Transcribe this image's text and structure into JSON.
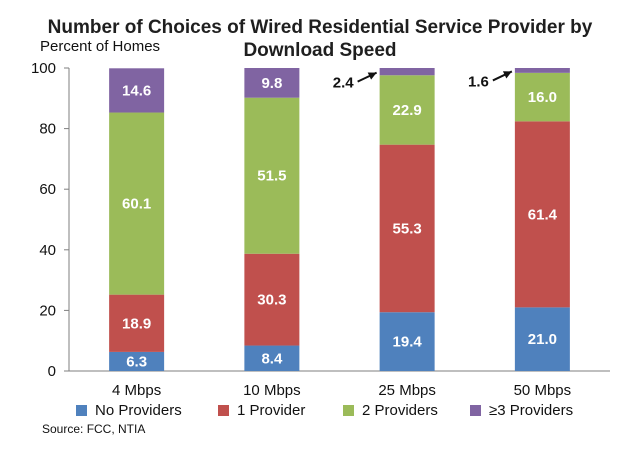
{
  "chart_data": {
    "type": "bar",
    "stacked": true,
    "title": "Number of Choices of Wired Residential Service Provider by Download Speed",
    "ylabel": "Percent of Homes",
    "xlabel": "",
    "ylim": [
      0,
      100
    ],
    "yticks": [
      "0",
      "20",
      "40",
      "60",
      "80",
      "100"
    ],
    "categories": [
      "4 Mbps",
      "10 Mbps",
      "25 Mbps",
      "50 Mbps"
    ],
    "series": [
      {
        "name": "No Providers",
        "color": "#4f81bd",
        "values": [
          6.3,
          8.4,
          19.4,
          21.0
        ],
        "labels": [
          "6.3",
          "8.4",
          "19.4",
          "21.0"
        ]
      },
      {
        "name": "1 Provider",
        "color": "#c0504d",
        "values": [
          18.9,
          30.3,
          55.3,
          61.4
        ],
        "labels": [
          "18.9",
          "30.3",
          "55.3",
          "61.4"
        ]
      },
      {
        "name": "2 Providers",
        "color": "#9bbb59",
        "values": [
          60.1,
          51.5,
          22.9,
          16.0
        ],
        "labels": [
          "60.1",
          "51.5",
          "22.9",
          "16.0"
        ]
      },
      {
        "name": "≥3 Providers",
        "color": "#8064a2",
        "values": [
          14.6,
          9.8,
          2.4,
          1.6
        ],
        "labels": [
          "14.6",
          "9.8",
          "2.4",
          "1.6"
        ]
      }
    ],
    "grid": false,
    "legend_position": "bottom"
  },
  "source": "Source: FCC, NTIA"
}
